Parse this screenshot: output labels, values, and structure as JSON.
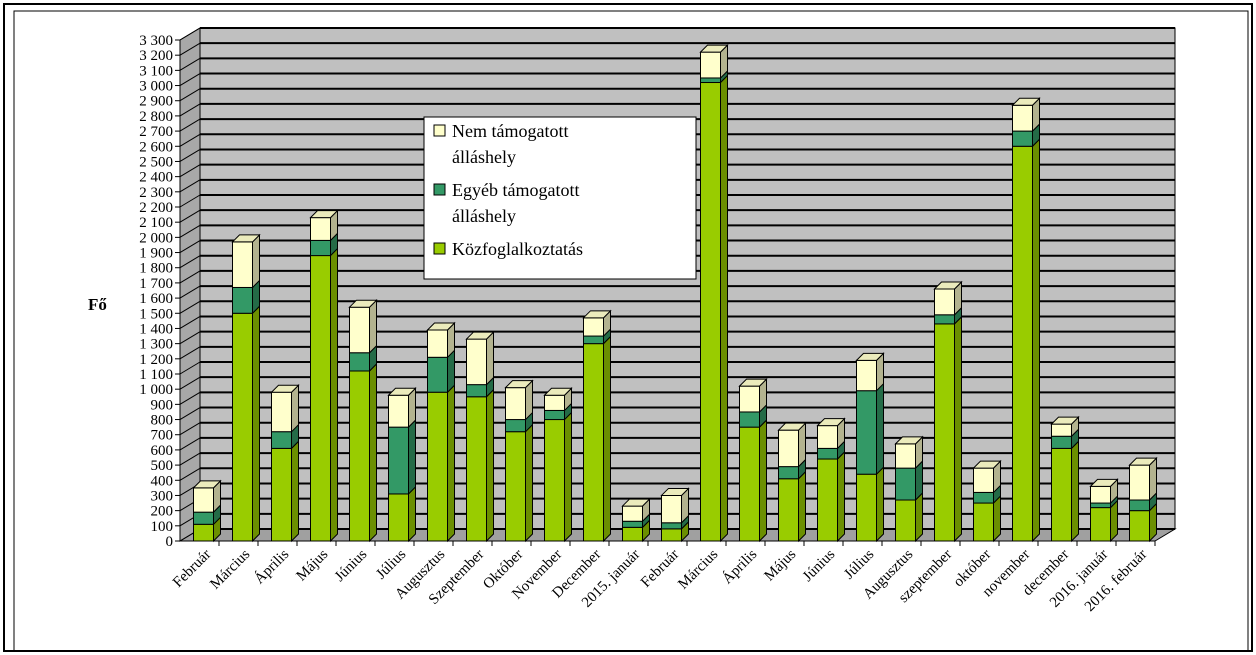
{
  "chart_data": {
    "type": "bar",
    "stacked": true,
    "three_d": true,
    "ylabel": "Fő",
    "xlabel": "",
    "title": "",
    "ylim": [
      0,
      3300
    ],
    "ytick_step": 100,
    "y_ticks": [
      "0",
      "100",
      "200",
      "300",
      "400",
      "500",
      "600",
      "700",
      "800",
      "900",
      "1 000",
      "1 100",
      "1 200",
      "1 300",
      "1 400",
      "1 500",
      "1 600",
      "1 700",
      "1 800",
      "1 900",
      "2 000",
      "2 100",
      "2 200",
      "2 300",
      "2 400",
      "2 500",
      "2 600",
      "2 700",
      "2 800",
      "2 900",
      "3 000",
      "3 100",
      "3 200",
      "3 300"
    ],
    "grid": true,
    "legend_position": "upper-center",
    "categories": [
      "Február",
      "Március",
      "Április",
      "Május",
      "Június",
      "Július",
      "Augusztus",
      "Szeptember",
      "Október",
      "November",
      "December",
      "2015. január",
      "Február",
      "Március",
      "Április",
      "Május",
      "Június",
      "Július",
      "Augusztus",
      "szeptember",
      "október",
      "november",
      "december",
      "2016. január",
      "2016. február"
    ],
    "series": [
      {
        "name": "Közfoglalkoztatás",
        "color": "#99cc00",
        "values": [
          110,
          1500,
          610,
          1880,
          1120,
          310,
          980,
          950,
          720,
          800,
          1300,
          90,
          80,
          3020,
          750,
          410,
          540,
          440,
          270,
          1430,
          250,
          2600,
          610,
          220,
          200
        ]
      },
      {
        "name": "Egyéb támogatott álláshely",
        "color": "#339966",
        "values": [
          80,
          170,
          110,
          100,
          120,
          440,
          230,
          80,
          80,
          60,
          50,
          40,
          40,
          30,
          100,
          80,
          70,
          550,
          210,
          60,
          70,
          100,
          80,
          30,
          70
        ]
      },
      {
        "name": "Nem támogatott álláshely",
        "color": "#ffffcc",
        "values": [
          160,
          300,
          260,
          150,
          300,
          210,
          180,
          300,
          210,
          100,
          120,
          100,
          180,
          170,
          170,
          240,
          150,
          200,
          160,
          170,
          160,
          170,
          80,
          110,
          230
        ]
      }
    ],
    "legend": {
      "entries": [
        {
          "lines": [
            "Nem támogatott",
            "álláshely"
          ],
          "color": "#ffffcc"
        },
        {
          "lines": [
            "Egyéb támogatott",
            "álláshely"
          ],
          "color": "#339966"
        },
        {
          "lines": [
            "Közfoglalkoztatás"
          ],
          "color": "#99cc00"
        }
      ]
    },
    "colors": {
      "wall": "#c0c0c0",
      "floor": "#a0a0a0",
      "gridline": "#000000",
      "outline": "#000000"
    }
  }
}
